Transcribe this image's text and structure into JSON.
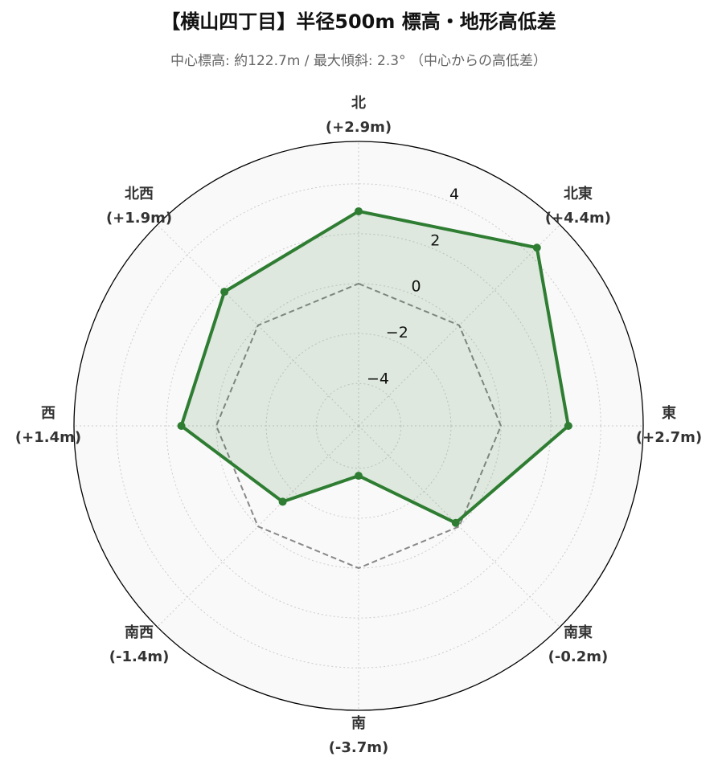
{
  "chart_data": {
    "type": "radar",
    "title": "【横山四丁目】半径500m 標高・地形高低差",
    "subtitle": "中心標高: 約122.7m / 最大傾斜: 2.3° （中心からの高低差）",
    "categories": [
      "北",
      "北東",
      "東",
      "南東",
      "南",
      "南西",
      "西",
      "北西"
    ],
    "values": [
      2.9,
      4.4,
      2.7,
      -0.2,
      -3.7,
      -1.4,
      1.4,
      1.9
    ],
    "value_labels": [
      "(+2.9m)",
      "(+4.4m)",
      "(+2.7m)",
      "(-0.2m)",
      "(-3.7m)",
      "(-1.4m)",
      "(+1.4m)",
      "(+1.9m)"
    ],
    "color": "#2e7d32",
    "baseline": 0,
    "ylim": [
      -5.7,
      5.7
    ],
    "yticks": [
      {
        "value": -4,
        "label": "−4"
      },
      {
        "value": -2,
        "label": "−2"
      },
      0,
      2,
      4
    ],
    "grid": true
  }
}
